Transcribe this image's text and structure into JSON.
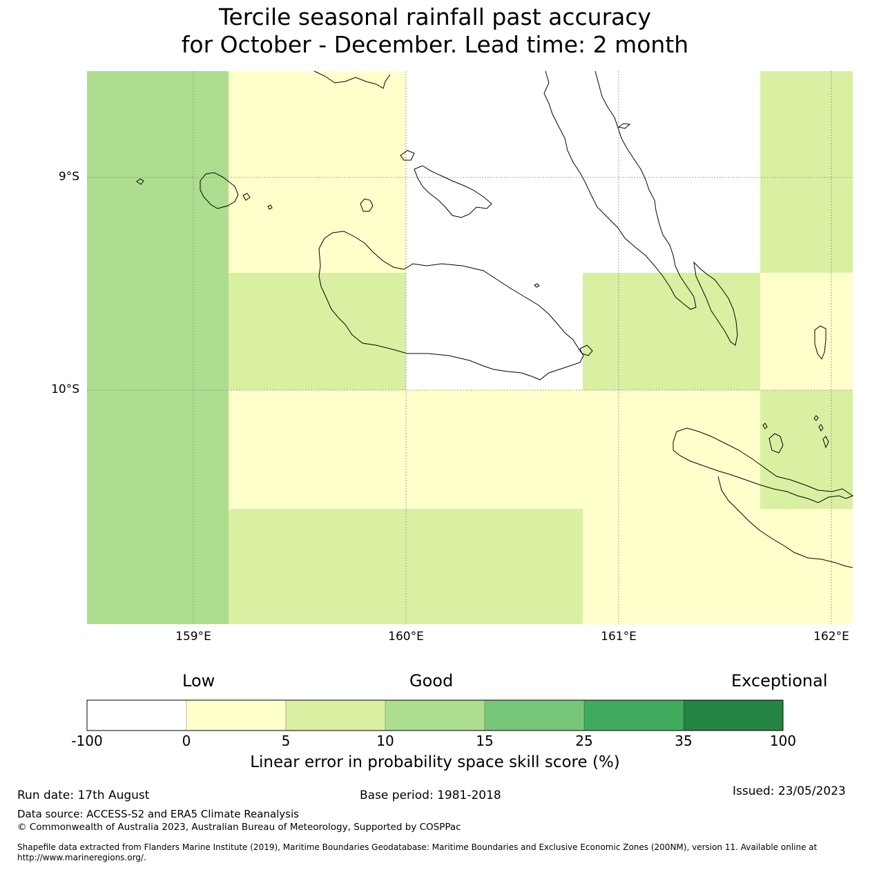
{
  "title_line1": "Tercile seasonal rainfall past accuracy",
  "title_line2": "for October - December. Lead time: 2 month",
  "map": {
    "lat_labels": [
      "9°S",
      "10°S"
    ],
    "lon_labels": [
      "159°E",
      "160°E",
      "161°E",
      "162°E"
    ],
    "colors": {
      "white": "#ffffff",
      "pale_yellow": "#ffffcc",
      "light_yellow_green": "#d9f0a3",
      "light_green": "#addd8e",
      "mid_green": "#78c679",
      "green": "#41ab5d",
      "dark_green": "#238443"
    }
  },
  "colorbar": {
    "categories": [
      "Low",
      "Good",
      "Exceptional"
    ],
    "ticks": [
      "-100",
      "0",
      "5",
      "10",
      "15",
      "25",
      "35",
      "100"
    ],
    "colors": [
      "#ffffff",
      "#ffffcc",
      "#d9f0a3",
      "#addd8e",
      "#78c679",
      "#41ab5d",
      "#238443"
    ],
    "label": "Linear error in probability space skill score (%)"
  },
  "footer": {
    "run_date": "Run date: 17th August",
    "base_period": "Base period: 1981-2018",
    "issued": "Issued: 23/05/2023",
    "data_source": "Data source: ACCESS-S2 and ERA5 Climate Reanalysis",
    "copyright": "© Commonwealth of Australia 2023, Australian Bureau of Meteorology, Supported by COSPPac",
    "shapefile": "Shapefile data extracted from Flanders Marine Institute (2019), Maritime Boundaries Geodatabase: Maritime Boundaries and Exclusive Economic Zones (200NM), version 11. Available online at http://www.marineregions.org/."
  }
}
